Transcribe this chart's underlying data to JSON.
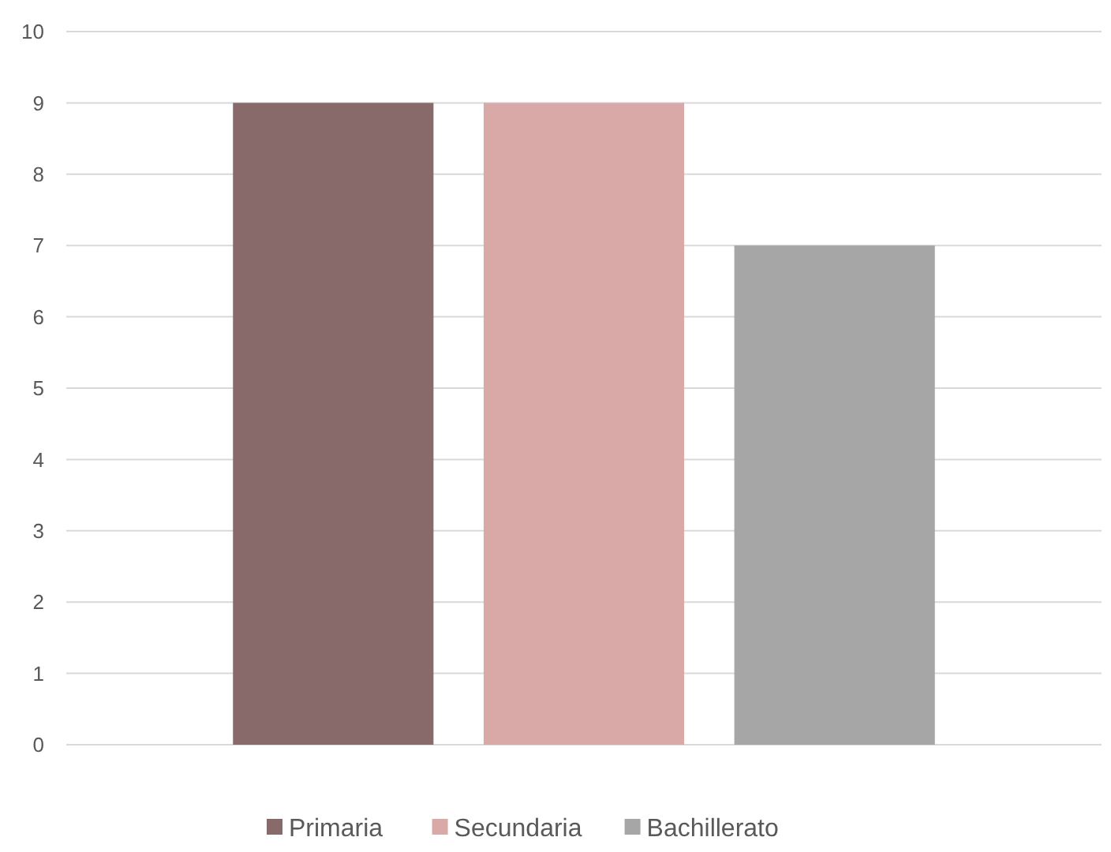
{
  "chart_data": {
    "type": "bar",
    "categories": [
      null
    ],
    "series": [
      {
        "name": "Primaria",
        "color": "#886a6a",
        "values": [
          9
        ]
      },
      {
        "name": "Secundaria",
        "color": "#d9a9a8",
        "values": [
          9
        ]
      },
      {
        "name": "Bachillerato",
        "color": "#a6a6a6",
        "values": [
          7
        ]
      }
    ],
    "ylim": [
      0,
      10
    ],
    "yticks": [
      0,
      1,
      2,
      3,
      4,
      5,
      6,
      7,
      8,
      9,
      10
    ],
    "grid": "y",
    "legend": "bottom"
  }
}
